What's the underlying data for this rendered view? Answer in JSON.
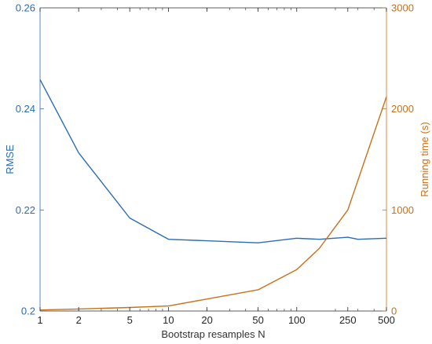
{
  "chart_data": {
    "type": "line",
    "title": "",
    "xlabel": "Bootstrap resamples N",
    "x_scale": "log",
    "xlim": [
      1,
      500
    ],
    "x_ticks": [
      1,
      2,
      5,
      10,
      20,
      50,
      100,
      250,
      500
    ],
    "y_left": {
      "label": "RMSE",
      "lim": [
        0.2,
        0.26
      ],
      "ticks": [
        0.2,
        0.22,
        0.24,
        0.26
      ],
      "tick_labels": [
        "0.2",
        "0.22",
        "0.24",
        "0.26"
      ],
      "color": "#2a6db5"
    },
    "y_right": {
      "label": "Running time (s)",
      "lim": [
        0,
        3000
      ],
      "ticks": [
        0,
        1000,
        2000,
        3000
      ],
      "tick_labels": [
        "0",
        "1000",
        "2000",
        "3000"
      ],
      "color": "#c8711a"
    },
    "grid": false,
    "series": [
      {
        "axis": "left",
        "color": "#2a6db5",
        "x": [
          1,
          2,
          5,
          10,
          50,
          100,
          150,
          250,
          300,
          500
        ],
        "y": [
          0.2458,
          0.2313,
          0.2184,
          0.2142,
          0.2135,
          0.2144,
          0.2142,
          0.2146,
          0.2142,
          0.2144
        ]
      },
      {
        "axis": "right",
        "color": "#c8711a",
        "x": [
          1,
          2,
          5,
          10,
          50,
          100,
          150,
          250,
          500
        ],
        "y": [
          10,
          20,
          35,
          50,
          210,
          410,
          620,
          1000,
          2120
        ]
      }
    ]
  }
}
